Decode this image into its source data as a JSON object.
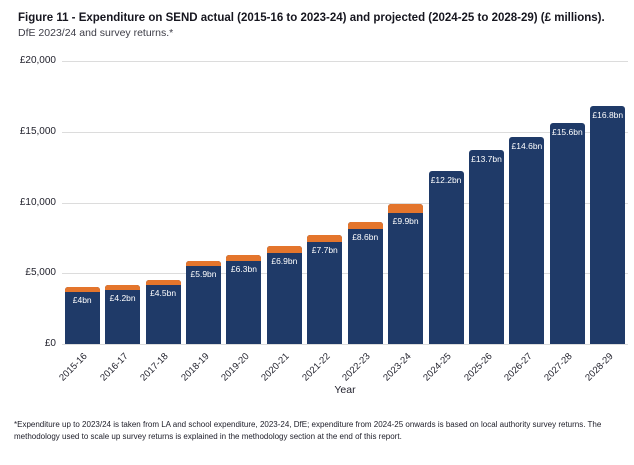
{
  "header": {
    "title": "Figure 11  - Expenditure on SEND actual (2015-16 to 2023-24) and projected (2024-25 to 2028-29) (£ millions).",
    "subtitle": "DfE 2023/24 and survey returns.*"
  },
  "chart_data": {
    "type": "bar",
    "title": "Expenditure on SEND actual (2015-16 to 2023-24) and projected (2024-25 to 2028-29) (£ millions)",
    "xlabel": "Year",
    "ylabel": "",
    "ylim": [
      0,
      20000
    ],
    "yticks": [
      0,
      5000,
      10000,
      15000,
      20000
    ],
    "ytick_labels": [
      "£0",
      "£5,000",
      "£10,000",
      "£15,000",
      "£20,000"
    ],
    "grid": "horizontal",
    "legend": "none",
    "categories": [
      "2015-16",
      "2016-17",
      "2017-18",
      "2018-19",
      "2019-20",
      "2020-21",
      "2021-22",
      "2022-23",
      "2023-24",
      "2024-25",
      "2025-26",
      "2026-27",
      "2027-28",
      "2028-29"
    ],
    "totals_bn": [
      4.0,
      4.2,
      4.5,
      5.9,
      6.3,
      6.9,
      7.7,
      8.6,
      9.9,
      12.2,
      13.7,
      14.6,
      15.6,
      16.8
    ],
    "bar_labels": [
      "£4bn",
      "£4.2bn",
      "£4.5bn",
      "£5.9bn",
      "£6.3bn",
      "£6.9bn",
      "£7.7bn",
      "£8.6bn",
      "£9.9bn",
      "£12.2bn",
      "£13.7bn",
      "£14.6bn",
      "£15.6bn",
      "£16.8bn"
    ],
    "orange_cap_top_segment_bn_est": [
      0.35,
      0.35,
      0.35,
      0.4,
      0.4,
      0.45,
      0.5,
      0.5,
      0.65,
      0,
      0,
      0,
      0,
      0
    ],
    "colors": {
      "bar": "#1f3a68",
      "cap": "#e4752c"
    }
  },
  "footnote": "*Expenditure up to 2023/24 is taken from LA and school expenditure, 2023-24, DfE; expenditure from 2024-25 onwards is based on local authority survey returns. The methodology used to scale up survey returns is explained in the methodology section at the end of this report."
}
